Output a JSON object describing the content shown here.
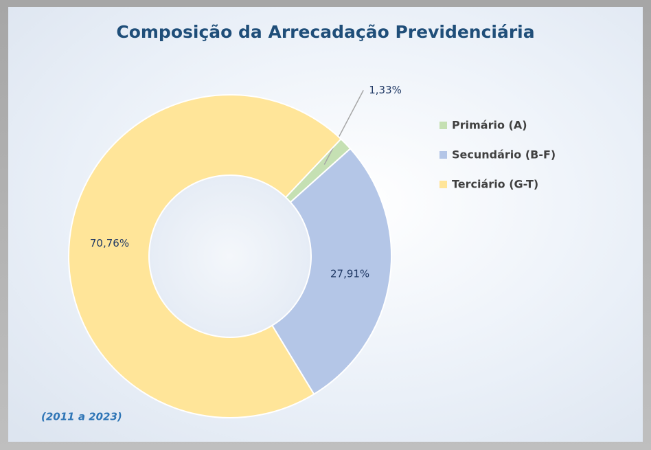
{
  "chart_data": {
    "type": "donut",
    "title": "Composição da Arrecadação Previdenciária",
    "categories": [
      "Primário (A)",
      "Secundário (B-F)",
      "Terciário (G-T)"
    ],
    "values": [
      1.33,
      27.91,
      70.76
    ],
    "value_labels": [
      "1,33%",
      "27,91%",
      "70,76%"
    ],
    "colors": [
      "#c5e0b3",
      "#b4c6e7",
      "#ffe599"
    ],
    "annotation": "(2011 a 2023)",
    "legend": "right"
  }
}
